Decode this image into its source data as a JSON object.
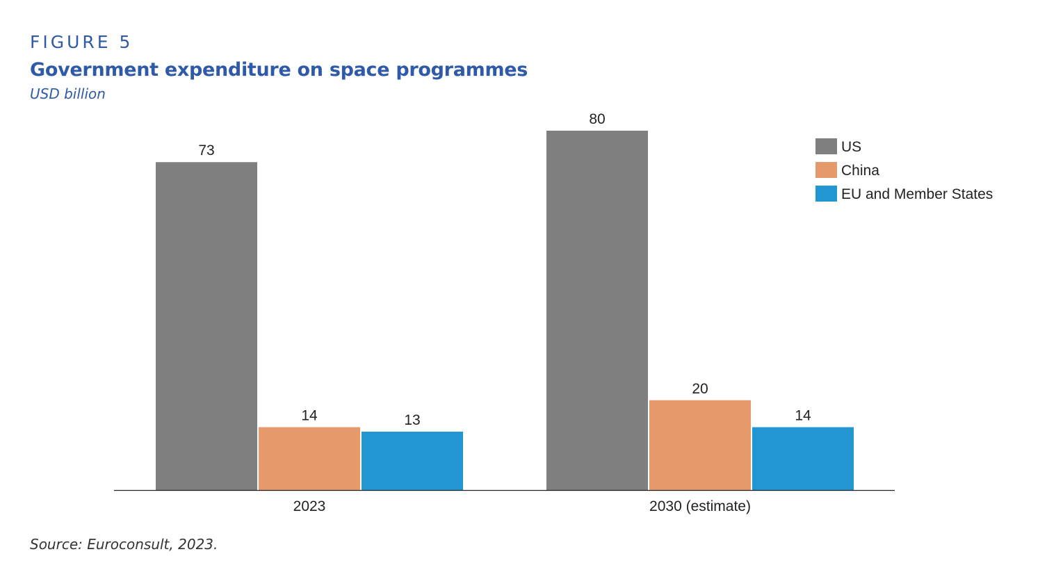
{
  "header": {
    "figure_label": "FIGURE 5",
    "title": "Government expenditure on space programmes",
    "subtitle": "USD billion"
  },
  "footer": {
    "source": "Source: Euroconsult, 2023."
  },
  "chart_data": {
    "type": "bar",
    "title": "Government expenditure on space programmes",
    "ylabel": "USD billion",
    "xlabel": "",
    "categories": [
      "2023",
      "2030 (estimate)"
    ],
    "series": [
      {
        "name": "US",
        "color": "#7f7f7f",
        "values": [
          73,
          80
        ]
      },
      {
        "name": "China",
        "color": "#e6996b",
        "values": [
          14,
          20
        ]
      },
      {
        "name": "EU and Member States",
        "color": "#2196d0",
        "values": [
          13,
          14
        ]
      }
    ],
    "ylim": [
      0,
      80
    ],
    "grid": false,
    "legend": "top-right",
    "data_labels": true
  }
}
